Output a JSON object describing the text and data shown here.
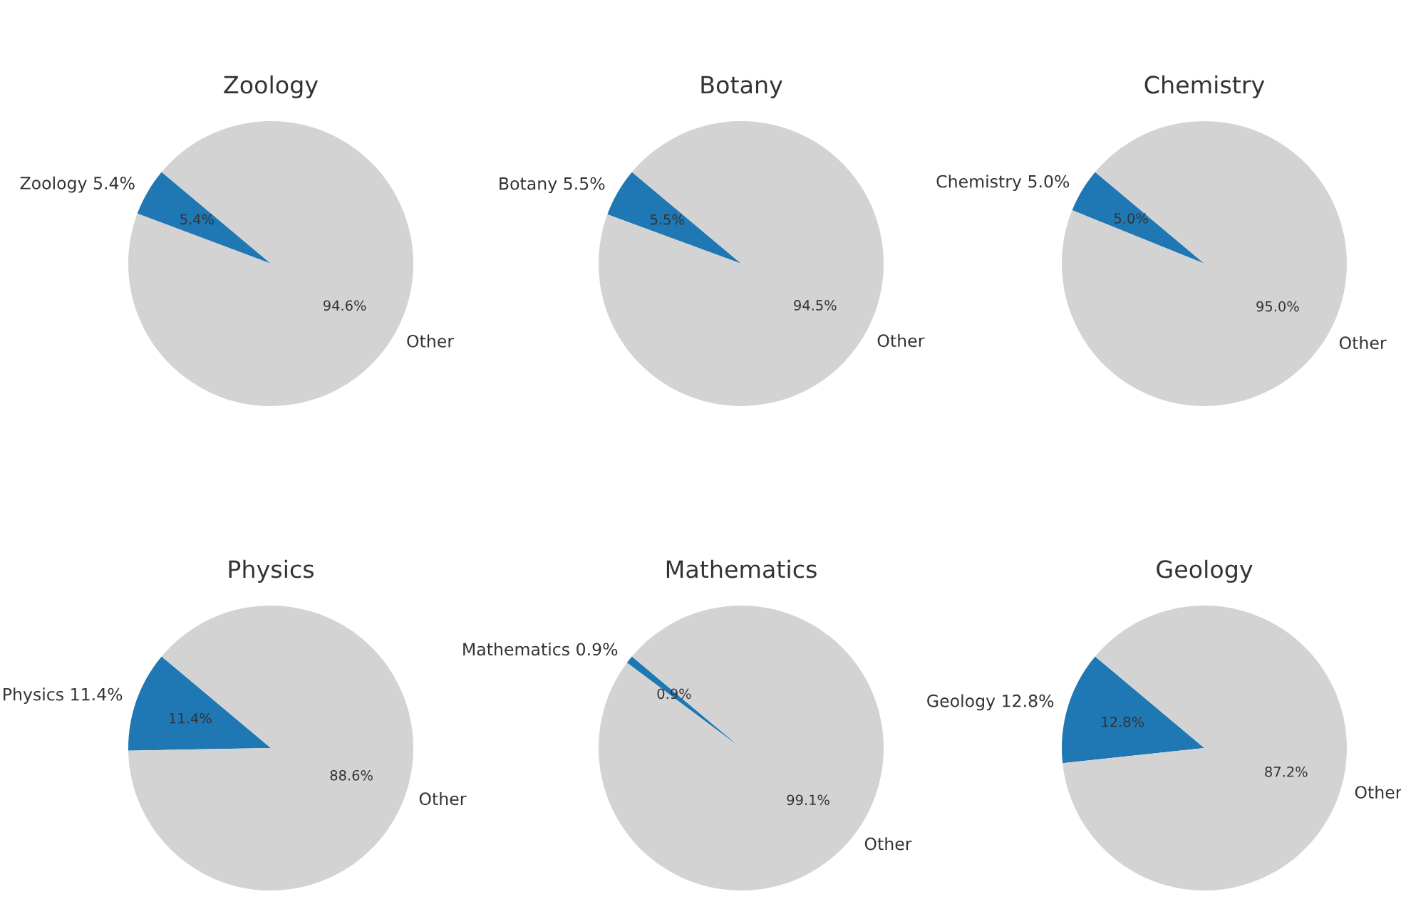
{
  "chart_data": [
    {
      "type": "pie",
      "title": "Zoology",
      "categories": [
        "Zoology 5.4%",
        "Other"
      ],
      "values": [
        5.4,
        94.6
      ],
      "colors": [
        "#1f77b4",
        "#d3d3d3"
      ],
      "value_labels": [
        "5.4%",
        "94.6%"
      ]
    },
    {
      "type": "pie",
      "title": "Botany",
      "categories": [
        "Botany 5.5%",
        "Other"
      ],
      "values": [
        5.5,
        94.5
      ],
      "colors": [
        "#1f77b4",
        "#d3d3d3"
      ],
      "value_labels": [
        "5.5%",
        "94.5%"
      ]
    },
    {
      "type": "pie",
      "title": "Chemistry",
      "categories": [
        "Chemistry 5.0%",
        "Other"
      ],
      "values": [
        5.0,
        95.0
      ],
      "colors": [
        "#1f77b4",
        "#d3d3d3"
      ],
      "value_labels": [
        "5.0%",
        "95.0%"
      ]
    },
    {
      "type": "pie",
      "title": "Physics",
      "categories": [
        "Physics 11.4%",
        "Other"
      ],
      "values": [
        11.4,
        88.6
      ],
      "colors": [
        "#1f77b4",
        "#d3d3d3"
      ],
      "value_labels": [
        "11.4%",
        "88.6%"
      ]
    },
    {
      "type": "pie",
      "title": "Mathematics",
      "categories": [
        "Mathematics 0.9%",
        "Other"
      ],
      "values": [
        0.9,
        99.1
      ],
      "colors": [
        "#1f77b4",
        "#d3d3d3"
      ],
      "value_labels": [
        "0.9%",
        "99.1%"
      ]
    },
    {
      "type": "pie",
      "title": "Geology",
      "categories": [
        "Geology 12.8%",
        "Other"
      ],
      "values": [
        12.8,
        87.2
      ],
      "colors": [
        "#1f77b4",
        "#d3d3d3"
      ],
      "value_labels": [
        "12.8%",
        "87.2%"
      ]
    }
  ]
}
